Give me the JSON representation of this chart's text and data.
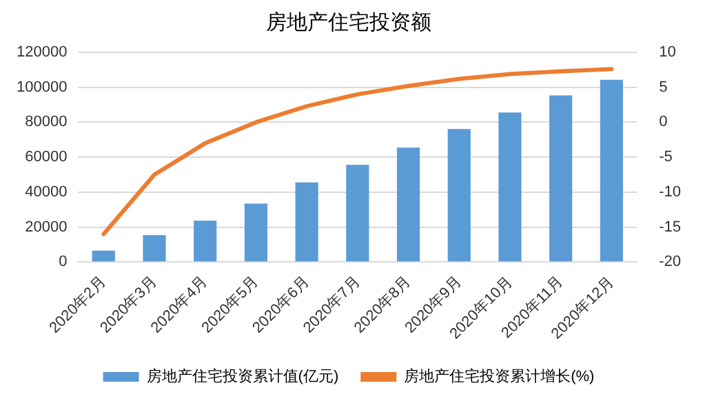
{
  "chart_data": {
    "type": "bar",
    "title": "房地产住宅投资额",
    "categories": [
      "2020年2月",
      "2020年3月",
      "2020年4月",
      "2020年5月",
      "2020年6月",
      "2020年7月",
      "2020年8月",
      "2020年9月",
      "2020年10月",
      "2020年11月",
      "2020年12月"
    ],
    "series": [
      {
        "name": "房地产住宅投资累计值(亿元)",
        "color": "#5b9bd5",
        "values": [
          6500,
          15400,
          23700,
          33400,
          45600,
          55600,
          65500,
          76100,
          85600,
          95400,
          104300
        ]
      },
      {
        "name": "房地产住宅投资累计增长(%)",
        "type": "line",
        "axis": "y2",
        "color": "#ed7d31",
        "values": [
          -16,
          -7.5,
          -3,
          0,
          2.3,
          4,
          5.2,
          6.2,
          6.9,
          7.3,
          7.6
        ]
      }
    ],
    "ylim": [
      0,
      120000
    ],
    "yticks": [
      0,
      20000,
      40000,
      60000,
      80000,
      100000,
      120000
    ],
    "y2lim": [
      -20,
      10
    ],
    "y2ticks": [
      -20,
      -15,
      -10,
      -5,
      0,
      5,
      10
    ],
    "grid": "y",
    "legend": "bottom",
    "marker": "none",
    "line_style": "solid"
  }
}
